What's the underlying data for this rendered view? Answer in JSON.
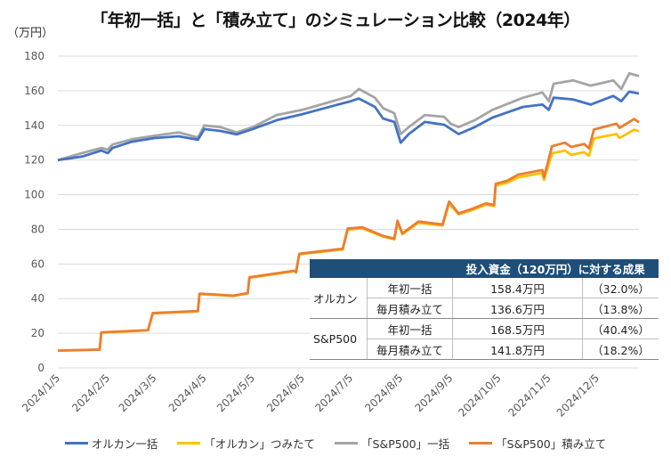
{
  "title": "「年初一括」と「積み立て」のシミュレーション比較（2024年）",
  "unit_label": "（万円）",
  "chart_data": {
    "type": "line",
    "title": "「年初一括」と「積み立て」のシミュレーション比較（2024年）",
    "ylabel": "（万円）",
    "ylim": [
      0,
      180
    ],
    "yticks": [
      "0",
      "20",
      "40",
      "60",
      "80",
      "100",
      "120",
      "140",
      "160",
      "180"
    ],
    "xlim": [
      "2024-01-05",
      "2024-12-31"
    ],
    "xticks": [
      "2024/1/5",
      "2024/2/5",
      "2024/3/5",
      "2024/4/5",
      "2024/5/5",
      "2024/6/5",
      "2024/7/5",
      "2024/8/5",
      "2024/9/5",
      "2024/10/5",
      "2024/11/5",
      "2024/12/5"
    ],
    "grid": true,
    "legend_position": "bottom",
    "series": [
      {
        "name": "「オルカン」つみたて",
        "color": "#FFC000",
        "points": [
          [
            "2024-01-05",
            10
          ],
          [
            "2024-01-31",
            10.5
          ],
          [
            "2024-02-01",
            20.3
          ],
          [
            "2024-03-01",
            21.7
          ],
          [
            "2024-03-04",
            31.5
          ],
          [
            "2024-04-01",
            32.6
          ],
          [
            "2024-04-02",
            42.7
          ],
          [
            "2024-04-23",
            41.5
          ],
          [
            "2024-05-02",
            43
          ],
          [
            "2024-05-03",
            52
          ],
          [
            "2024-05-31",
            55.8
          ],
          [
            "2024-06-01",
            55
          ],
          [
            "2024-06-03",
            65.6
          ],
          [
            "2024-06-30",
            68.4
          ],
          [
            "2024-07-03",
            79.8
          ],
          [
            "2024-07-12",
            80.6
          ],
          [
            "2024-07-25",
            75.8
          ],
          [
            "2024-08-01",
            74.2
          ],
          [
            "2024-08-03",
            84
          ],
          [
            "2024-08-06",
            77.2
          ],
          [
            "2024-08-16",
            83.8
          ],
          [
            "2024-08-31",
            82.2
          ],
          [
            "2024-09-04",
            95
          ],
          [
            "2024-09-10",
            88.6
          ],
          [
            "2024-09-18",
            91
          ],
          [
            "2024-09-27",
            94.2
          ],
          [
            "2024-10-02",
            93.4
          ],
          [
            "2024-10-03",
            105.3
          ],
          [
            "2024-10-10",
            106.8
          ],
          [
            "2024-10-17",
            110
          ],
          [
            "2024-11-01",
            112.5
          ],
          [
            "2024-11-02",
            108.5
          ],
          [
            "2024-11-07",
            123.8
          ],
          [
            "2024-11-15",
            125.5
          ],
          [
            "2024-11-19",
            123
          ],
          [
            "2024-11-27",
            124.5
          ],
          [
            "2024-11-30",
            122.5
          ],
          [
            "2024-12-03",
            132.5
          ],
          [
            "2024-12-17",
            135
          ],
          [
            "2024-12-19",
            132.8
          ],
          [
            "2024-12-28",
            137.5
          ],
          [
            "2024-12-31",
            136.6
          ]
        ]
      },
      {
        "name": "「S&P500」積み立て",
        "color": "#ED7D31",
        "points": [
          [
            "2024-01-05",
            10
          ],
          [
            "2024-01-31",
            10.6
          ],
          [
            "2024-02-01",
            20.5
          ],
          [
            "2024-03-01",
            21.8
          ],
          [
            "2024-03-04",
            31.7
          ],
          [
            "2024-04-01",
            32.8
          ],
          [
            "2024-04-02",
            42.9
          ],
          [
            "2024-04-23",
            41.7
          ],
          [
            "2024-05-02",
            43.2
          ],
          [
            "2024-05-03",
            52.3
          ],
          [
            "2024-05-31",
            56.1
          ],
          [
            "2024-06-01",
            55.3
          ],
          [
            "2024-06-03",
            65.9
          ],
          [
            "2024-06-30",
            68.8
          ],
          [
            "2024-07-03",
            80.4
          ],
          [
            "2024-07-12",
            81.2
          ],
          [
            "2024-07-25",
            76.2
          ],
          [
            "2024-08-01",
            74.6
          ],
          [
            "2024-08-03",
            85
          ],
          [
            "2024-08-06",
            77.6
          ],
          [
            "2024-08-16",
            84.5
          ],
          [
            "2024-08-31",
            82.8
          ],
          [
            "2024-09-04",
            96
          ],
          [
            "2024-09-10",
            89.2
          ],
          [
            "2024-09-18",
            91.7
          ],
          [
            "2024-09-27",
            95
          ],
          [
            "2024-10-02",
            94
          ],
          [
            "2024-10-03",
            106.3
          ],
          [
            "2024-10-10",
            108
          ],
          [
            "2024-10-17",
            111.6
          ],
          [
            "2024-11-01",
            114.2
          ],
          [
            "2024-11-02",
            110
          ],
          [
            "2024-11-07",
            128
          ],
          [
            "2024-11-15",
            130
          ],
          [
            "2024-11-19",
            127.6
          ],
          [
            "2024-11-27",
            129.3
          ],
          [
            "2024-11-30",
            126.7
          ],
          [
            "2024-12-03",
            137.6
          ],
          [
            "2024-12-17",
            141
          ],
          [
            "2024-12-19",
            138.6
          ],
          [
            "2024-12-28",
            143.7
          ],
          [
            "2024-12-31",
            141.8
          ]
        ]
      },
      {
        "name": "「S&P500」一括",
        "color": "#A5A5A5",
        "points": [
          [
            "2024-01-05",
            120
          ],
          [
            "2024-01-20",
            124
          ],
          [
            "2024-02-01",
            127
          ],
          [
            "2024-02-05",
            126
          ],
          [
            "2024-02-08",
            129
          ],
          [
            "2024-02-20",
            132
          ],
          [
            "2024-03-05",
            134
          ],
          [
            "2024-03-20",
            136
          ],
          [
            "2024-04-01",
            133
          ],
          [
            "2024-04-05",
            140
          ],
          [
            "2024-04-15",
            139
          ],
          [
            "2024-04-25",
            136
          ],
          [
            "2024-05-05",
            139
          ],
          [
            "2024-05-20",
            146
          ],
          [
            "2024-06-05",
            149
          ],
          [
            "2024-06-20",
            153
          ],
          [
            "2024-07-05",
            157
          ],
          [
            "2024-07-10",
            161
          ],
          [
            "2024-07-20",
            156
          ],
          [
            "2024-07-25",
            150
          ],
          [
            "2024-08-01",
            147
          ],
          [
            "2024-08-05",
            135
          ],
          [
            "2024-08-10",
            139
          ],
          [
            "2024-08-20",
            146
          ],
          [
            "2024-09-01",
            145
          ],
          [
            "2024-09-05",
            141
          ],
          [
            "2024-09-10",
            139
          ],
          [
            "2024-09-20",
            143
          ],
          [
            "2024-10-01",
            149
          ],
          [
            "2024-10-20",
            156
          ],
          [
            "2024-11-01",
            159
          ],
          [
            "2024-11-05",
            154
          ],
          [
            "2024-11-08",
            164
          ],
          [
            "2024-11-20",
            166
          ],
          [
            "2024-12-01",
            163
          ],
          [
            "2024-12-15",
            166
          ],
          [
            "2024-12-20",
            161
          ],
          [
            "2024-12-25",
            170
          ],
          [
            "2024-12-31",
            168.5
          ]
        ]
      },
      {
        "name": "オルカン一括",
        "color": "#4472C4",
        "points": [
          [
            "2024-01-05",
            120
          ],
          [
            "2024-01-20",
            122
          ],
          [
            "2024-02-01",
            125.5
          ],
          [
            "2024-02-05",
            124
          ],
          [
            "2024-02-08",
            127
          ],
          [
            "2024-02-20",
            130.6
          ],
          [
            "2024-03-05",
            132.7
          ],
          [
            "2024-03-20",
            133.7
          ],
          [
            "2024-04-01",
            131.7
          ],
          [
            "2024-04-05",
            137.9
          ],
          [
            "2024-04-15",
            136.8
          ],
          [
            "2024-04-25",
            134.8
          ],
          [
            "2024-05-05",
            137.9
          ],
          [
            "2024-05-20",
            143
          ],
          [
            "2024-06-05",
            146.5
          ],
          [
            "2024-06-20",
            150.3
          ],
          [
            "2024-07-05",
            154
          ],
          [
            "2024-07-10",
            155.5
          ],
          [
            "2024-07-20",
            150.7
          ],
          [
            "2024-07-25",
            144
          ],
          [
            "2024-08-01",
            142
          ],
          [
            "2024-08-05",
            130
          ],
          [
            "2024-08-10",
            135
          ],
          [
            "2024-08-20",
            142
          ],
          [
            "2024-09-01",
            140.4
          ],
          [
            "2024-09-05",
            138
          ],
          [
            "2024-09-10",
            135
          ],
          [
            "2024-09-20",
            139
          ],
          [
            "2024-10-01",
            144.5
          ],
          [
            "2024-10-20",
            150.7
          ],
          [
            "2024-11-01",
            152
          ],
          [
            "2024-11-05",
            149
          ],
          [
            "2024-11-08",
            156
          ],
          [
            "2024-11-20",
            155
          ],
          [
            "2024-12-01",
            152
          ],
          [
            "2024-12-15",
            157
          ],
          [
            "2024-12-20",
            154
          ],
          [
            "2024-12-25",
            159.5
          ],
          [
            "2024-12-31",
            158.4
          ]
        ]
      }
    ],
    "legend": [
      "オルカン一括",
      "「オルカン」つみたて",
      "「S&P500」一括",
      "「S&P500」積み立て"
    ],
    "legend_colors": [
      "#4472C4",
      "#FFC000",
      "#A5A5A5",
      "#ED7D31"
    ]
  },
  "table": {
    "header": "投入資金（120万円）に対する成果",
    "header_color": "#1F4E79",
    "groups": [
      {
        "name": "オルカン",
        "rows": [
          {
            "method": "年初一括",
            "value": "158.4万円",
            "pct": "（32.0%）"
          },
          {
            "method": "毎月積み立て",
            "value": "136.6万円",
            "pct": "（13.8%）"
          }
        ]
      },
      {
        "name": "S&P500",
        "rows": [
          {
            "method": "年初一括",
            "value": "168.5万円",
            "pct": "（40.4%）"
          },
          {
            "method": "毎月積み立て",
            "value": "141.8万円",
            "pct": "（18.2%）"
          }
        ]
      }
    ]
  }
}
